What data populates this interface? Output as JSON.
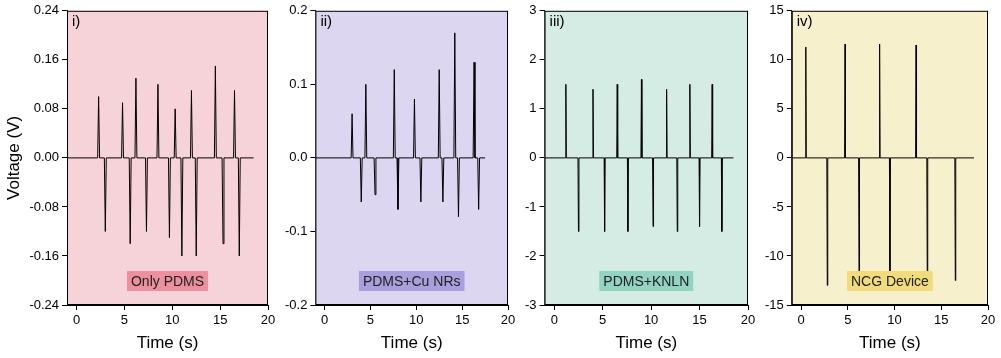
{
  "chart_data": [
    {
      "type": "line",
      "panel_label": "i)",
      "annotation": "Only PDMS",
      "y_label": "Voltage (V)",
      "x_label": "Time (s)",
      "color": "#000000",
      "grid": false,
      "xlim": [
        -1,
        20
      ],
      "xticks": [
        0,
        5,
        10,
        15,
        20
      ],
      "ylim": [
        -0.24,
        0.24
      ],
      "yticks": [
        -0.24,
        -0.16,
        -0.08,
        {
          "value": 0,
          "label": "0.00"
        },
        0.08,
        0.16,
        0.24
      ],
      "x": [
        -1,
        2.2,
        2.3,
        2.4,
        2.9,
        3.0,
        3.1,
        4.7,
        4.8,
        4.9,
        5.5,
        5.6,
        5.7,
        6.1,
        6.2,
        6.3,
        7.2,
        7.3,
        7.4,
        8.4,
        8.5,
        8.6,
        9.6,
        9.7,
        9.8,
        10.2,
        10.3,
        10.4,
        10.9,
        11.0,
        11.1,
        11.9,
        12.0,
        12.1,
        12.4,
        12.5,
        12.6,
        14.4,
        14.5,
        14.6,
        15.2,
        15.3,
        15.4,
        16.4,
        16.5,
        16.6,
        16.9,
        17.0,
        17.1,
        18.5
      ],
      "values": [
        0,
        0,
        0.1,
        0,
        0,
        -0.12,
        0,
        0,
        0.09,
        0,
        0,
        -0.14,
        0,
        0,
        0.13,
        0,
        0,
        -0.12,
        0,
        0,
        0.12,
        0,
        0,
        -0.13,
        0,
        0,
        0.08,
        0,
        0,
        -0.16,
        0,
        0,
        0.11,
        0,
        0,
        -0.16,
        0,
        0,
        0.15,
        0,
        0,
        -0.14,
        0,
        0,
        0.11,
        0,
        0,
        -0.16,
        0,
        0
      ]
    },
    {
      "type": "line",
      "panel_label": "ii)",
      "annotation": "PDMS+Cu NRs",
      "x_label": "Time (s)",
      "color": "#000000",
      "grid": false,
      "xlim": [
        -1,
        20
      ],
      "xticks": [
        0,
        5,
        10,
        15,
        20
      ],
      "ylim": [
        -0.2,
        0.2
      ],
      "yticks": [
        -0.2,
        -0.1,
        {
          "value": 0,
          "label": "0.0"
        },
        0.1,
        0.2
      ],
      "x": [
        -1,
        2.9,
        3.0,
        3.1,
        3.9,
        4.0,
        4.1,
        4.4,
        4.5,
        4.6,
        5.4,
        5.5,
        5.6,
        7.5,
        7.6,
        7.7,
        7.9,
        8.0,
        8.1,
        9.7,
        9.8,
        9.9,
        10.4,
        10.5,
        10.6,
        12.4,
        12.5,
        12.6,
        12.8,
        12.9,
        13.0,
        14.1,
        14.2,
        14.3,
        14.5,
        14.6,
        14.7,
        16.2,
        16.3,
        16.4,
        16.7,
        16.8,
        16.9,
        17.5
      ],
      "values": [
        0,
        0,
        0.06,
        0,
        0,
        -0.06,
        0,
        0,
        0.1,
        0,
        0,
        -0.05,
        0,
        0,
        0.12,
        0,
        0,
        -0.07,
        0,
        0,
        0.08,
        0,
        0,
        -0.06,
        0,
        0,
        0.12,
        0,
        0,
        -0.06,
        0,
        0,
        0.17,
        0,
        0,
        -0.08,
        0,
        0,
        0.13,
        0,
        0,
        -0.07,
        0,
        0
      ]
    },
    {
      "type": "line",
      "panel_label": "iii)",
      "annotation": "PDMS+KNLN",
      "x_label": "Time (s)",
      "color": "#000000",
      "grid": false,
      "xlim": [
        -1,
        20
      ],
      "xticks": [
        0,
        5,
        10,
        15,
        20
      ],
      "ylim": [
        -3,
        3
      ],
      "yticks": [
        -3,
        -2,
        -1,
        0,
        1,
        2,
        3
      ],
      "x": [
        -1,
        1.15,
        1.2,
        1.25,
        2.45,
        2.5,
        2.55,
        3.95,
        4.0,
        4.05,
        5.15,
        5.2,
        5.25,
        6.45,
        6.5,
        6.55,
        7.55,
        7.6,
        7.65,
        8.95,
        9.0,
        9.05,
        10.15,
        10.2,
        10.25,
        11.55,
        11.6,
        11.65,
        12.65,
        12.7,
        12.75,
        13.95,
        14.0,
        14.05,
        14.95,
        15.0,
        15.05,
        16.25,
        16.3,
        16.35,
        17.25,
        17.3,
        17.35,
        18.5
      ],
      "values": [
        0,
        0,
        1.5,
        0,
        0,
        -1.5,
        0,
        0,
        1.4,
        0,
        0,
        -1.5,
        0,
        0,
        1.5,
        0,
        0,
        -1.5,
        0,
        0,
        1.6,
        0,
        0,
        -1.4,
        0,
        0,
        1.4,
        0,
        0,
        -1.5,
        0,
        0,
        1.5,
        0,
        0,
        -1.4,
        0,
        0,
        1.5,
        0,
        0,
        -1.5,
        0,
        0
      ]
    },
    {
      "type": "line",
      "panel_label": "iv)",
      "annotation": "NCG Device",
      "x_label": "Time (s)",
      "color": "#000000",
      "grid": false,
      "xlim": [
        -1,
        20
      ],
      "xticks": [
        0,
        5,
        10,
        15,
        20
      ],
      "ylim": [
        -15,
        15
      ],
      "yticks": [
        -15,
        -10,
        -5,
        0,
        5,
        10,
        15
      ],
      "x": [
        -1,
        0.45,
        0.5,
        0.55,
        2.75,
        2.8,
        2.85,
        4.65,
        4.7,
        4.75,
        6.15,
        6.2,
        6.25,
        8.35,
        8.4,
        8.45,
        9.45,
        9.5,
        9.55,
        12.25,
        12.3,
        12.35,
        13.45,
        13.5,
        13.55,
        16.45,
        16.5,
        16.55,
        18.5
      ],
      "values": [
        0,
        0,
        11.3,
        0,
        0,
        -13,
        0,
        0,
        11.6,
        0,
        0,
        -13,
        0,
        0,
        11.6,
        0,
        0,
        -13,
        0,
        0,
        11.5,
        0,
        0,
        -12.5,
        0,
        0,
        -12.5,
        0,
        0
      ]
    }
  ]
}
